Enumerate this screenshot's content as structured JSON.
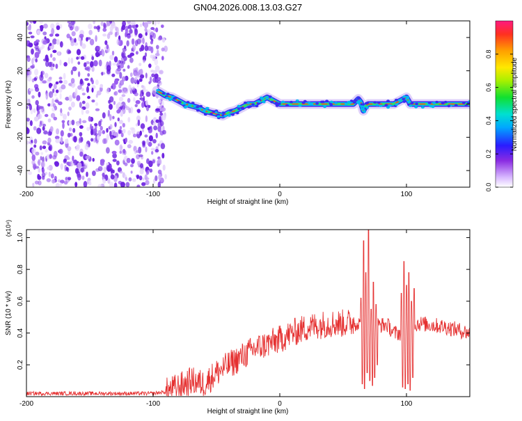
{
  "title": "GN04.2026.008.13.03.G27",
  "colors": {
    "snr_line": "#e53030",
    "noise_purple": "#7a2ee6",
    "background": "#ffffff"
  },
  "chart_data": [
    {
      "type": "heatmap",
      "name": "spectrogram",
      "xlabel": "Height of straight line (km)",
      "ylabel": "Frequency (Hz)",
      "xlim": [
        -200,
        150
      ],
      "ylim": [
        -50,
        50
      ],
      "xticks": [
        -200,
        -100,
        0,
        100
      ],
      "yticks": [
        -40,
        -20,
        0,
        20,
        40
      ],
      "noise_region_x": [
        -200,
        -90
      ],
      "trace": {
        "x": [
          -97,
          -90,
          -85,
          -80,
          -75,
          -70,
          -65,
          -60,
          -55,
          -50,
          -45,
          -40,
          -35,
          -30,
          -25,
          -20,
          -15,
          -10,
          -5,
          0,
          10,
          20,
          30,
          40,
          50,
          58,
          62,
          64,
          66,
          68,
          70,
          80,
          90,
          95,
          100,
          103,
          110,
          120,
          130,
          140,
          150
        ],
        "y": [
          8,
          5,
          4,
          2,
          0,
          -1,
          -2,
          -4,
          -5,
          -6,
          -7,
          -5,
          -4,
          -2,
          0,
          0,
          2,
          4,
          2,
          0,
          0,
          0,
          0,
          0,
          0,
          0,
          3,
          1,
          -4,
          -1,
          0,
          0,
          0,
          2,
          4,
          0,
          0,
          0,
          0,
          0,
          0
        ]
      },
      "colorbar": {
        "label": "Normalized spectral amplitude",
        "range": [
          0.0,
          1.0
        ],
        "ticks": [
          0.0,
          0.2,
          0.4,
          0.6,
          0.8
        ]
      }
    },
    {
      "type": "line",
      "name": "snr",
      "xlabel": "Height of straight line (km)",
      "ylabel": "SNR (10 * v/v)",
      "scale_label": "(x10⁴)",
      "xlim": [
        -200,
        150
      ],
      "ylim": [
        0,
        1.05
      ],
      "xticks": [
        -200,
        -100,
        0,
        100
      ],
      "yticks": [
        0.2,
        0.4,
        0.6,
        0.8,
        1.0
      ],
      "envelope": {
        "x": [
          -200,
          -100,
          -90,
          -80,
          -70,
          -60,
          -50,
          -40,
          -30,
          -20,
          -10,
          0,
          10,
          20,
          30,
          40,
          50,
          60,
          64,
          66,
          68,
          70,
          72,
          74,
          76,
          80,
          85,
          90,
          95,
          98,
          100,
          102,
          104,
          106,
          110,
          120,
          130,
          140,
          150
        ],
        "y": [
          0.02,
          0.02,
          0.03,
          0.06,
          0.1,
          0.08,
          0.15,
          0.2,
          0.25,
          0.3,
          0.33,
          0.36,
          0.4,
          0.43,
          0.45,
          0.46,
          0.46,
          0.47,
          0.45,
          0.4,
          0.35,
          0.4,
          0.38,
          0.4,
          0.45,
          0.45,
          0.45,
          0.4,
          0.4,
          0.35,
          0.42,
          0.3,
          0.4,
          0.45,
          0.46,
          0.45,
          0.44,
          0.42,
          0.4
        ]
      },
      "spikes": [
        {
          "x": 64,
          "y": 0.62
        },
        {
          "x": 65,
          "y": 0.08
        },
        {
          "x": 66,
          "y": 0.98
        },
        {
          "x": 67,
          "y": 0.05
        },
        {
          "x": 68,
          "y": 0.78
        },
        {
          "x": 69,
          "y": 0.15
        },
        {
          "x": 70,
          "y": 1.05
        },
        {
          "x": 71,
          "y": 0.1
        },
        {
          "x": 72,
          "y": 0.55
        },
        {
          "x": 73,
          "y": 0.07
        },
        {
          "x": 74,
          "y": 0.72
        },
        {
          "x": 75,
          "y": 0.12
        },
        {
          "x": 76,
          "y": 0.58
        },
        {
          "x": 77,
          "y": 0.2
        },
        {
          "x": 96,
          "y": 0.65
        },
        {
          "x": 97,
          "y": 0.06
        },
        {
          "x": 98,
          "y": 0.85
        },
        {
          "x": 99,
          "y": 0.05
        },
        {
          "x": 100,
          "y": 0.7
        },
        {
          "x": 101,
          "y": 0.08
        },
        {
          "x": 102,
          "y": 0.78
        },
        {
          "x": 103,
          "y": 0.04
        },
        {
          "x": 104,
          "y": 0.6
        },
        {
          "x": 105,
          "y": 0.12
        },
        {
          "x": 106,
          "y": 0.68
        }
      ]
    }
  ]
}
